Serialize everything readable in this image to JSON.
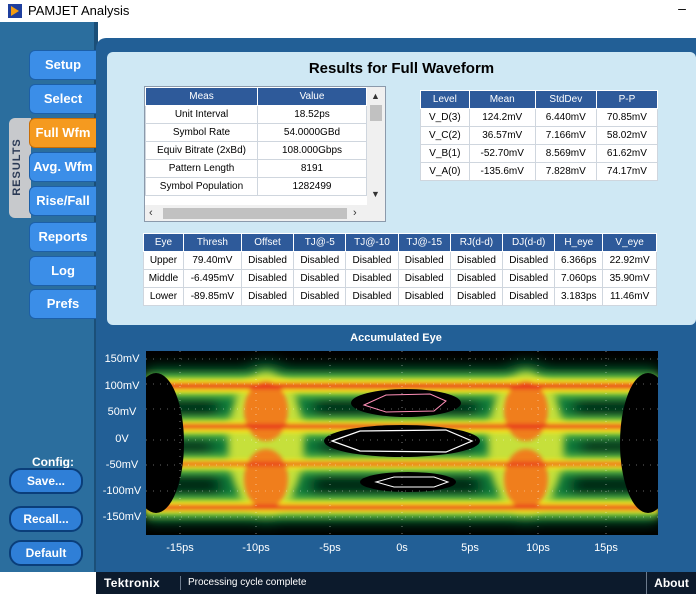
{
  "app": {
    "title": "PAMJET Analysis",
    "minimize": "–"
  },
  "sidebar": {
    "group_label": "RESULTS",
    "tabs": [
      {
        "label": "Setup",
        "active": false
      },
      {
        "label": "Select",
        "active": false
      },
      {
        "label": "Full Wfm",
        "active": true
      },
      {
        "label": "Avg. Wfm",
        "active": false
      },
      {
        "label": "Rise/Fall",
        "active": false
      },
      {
        "label": "Reports",
        "active": false
      },
      {
        "label": "Log",
        "active": false
      },
      {
        "label": "Prefs",
        "active": false
      }
    ],
    "config_label": "Config:",
    "buttons": {
      "save": "Save...",
      "recall": "Recall...",
      "default": "Default"
    }
  },
  "results": {
    "title": "Results for Full Waveform",
    "meas_table": {
      "headers": [
        "Meas",
        "Value"
      ],
      "rows": [
        [
          "Unit Interval",
          "18.52ps"
        ],
        [
          "Symbol Rate",
          "54.0000GBd"
        ],
        [
          "Equiv Bitrate (2xBd)",
          "108.000Gbps"
        ],
        [
          "Pattern Length",
          "8191"
        ],
        [
          "Symbol Population",
          "1282499"
        ]
      ]
    },
    "level_table": {
      "headers": [
        "Level",
        "Mean",
        "StdDev",
        "P-P"
      ],
      "rows": [
        [
          "V_D(3)",
          "124.2mV",
          "6.440mV",
          "70.85mV"
        ],
        [
          "V_C(2)",
          "36.57mV",
          "7.166mV",
          "58.02mV"
        ],
        [
          "V_B(1)",
          "-52.70mV",
          "8.569mV",
          "61.62mV"
        ],
        [
          "V_A(0)",
          "-135.6mV",
          "7.828mV",
          "74.17mV"
        ]
      ]
    },
    "eye_table": {
      "headers": [
        "Eye",
        "Thresh",
        "Offset",
        "TJ@-5",
        "TJ@-10",
        "TJ@-15",
        "RJ(d-d)",
        "DJ(d-d)",
        "H_eye",
        "V_eye"
      ],
      "rows": [
        [
          "Upper",
          "79.40mV",
          "Disabled",
          "Disabled",
          "Disabled",
          "Disabled",
          "Disabled",
          "Disabled",
          "6.366ps",
          "22.92mV"
        ],
        [
          "Middle",
          "-6.495mV",
          "Disabled",
          "Disabled",
          "Disabled",
          "Disabled",
          "Disabled",
          "Disabled",
          "7.060ps",
          "35.90mV"
        ],
        [
          "Lower",
          "-89.85mV",
          "Disabled",
          "Disabled",
          "Disabled",
          "Disabled",
          "Disabled",
          "Disabled",
          "3.183ps",
          "11.46mV"
        ]
      ]
    }
  },
  "plot": {
    "title": "Accumulated Eye",
    "y_ticks": [
      "150mV",
      "100mV",
      "50mV",
      "0V",
      "-50mV",
      "-100mV",
      "-150mV"
    ],
    "x_ticks": [
      "-15ps",
      "-10ps",
      "-5ps",
      "0s",
      "5ps",
      "10ps",
      "15ps"
    ]
  },
  "status": {
    "brand": "Tektronix",
    "message": "Processing cycle complete",
    "about": "About"
  },
  "colors": {
    "sidebar_bg": "#2b6e9e",
    "tab_blue": "#3b8ee8",
    "tab_active": "#f59a1f",
    "panel_bg": "#cfe8f4",
    "frame_bg": "#225f96",
    "header_bg": "#2e5a9a"
  }
}
